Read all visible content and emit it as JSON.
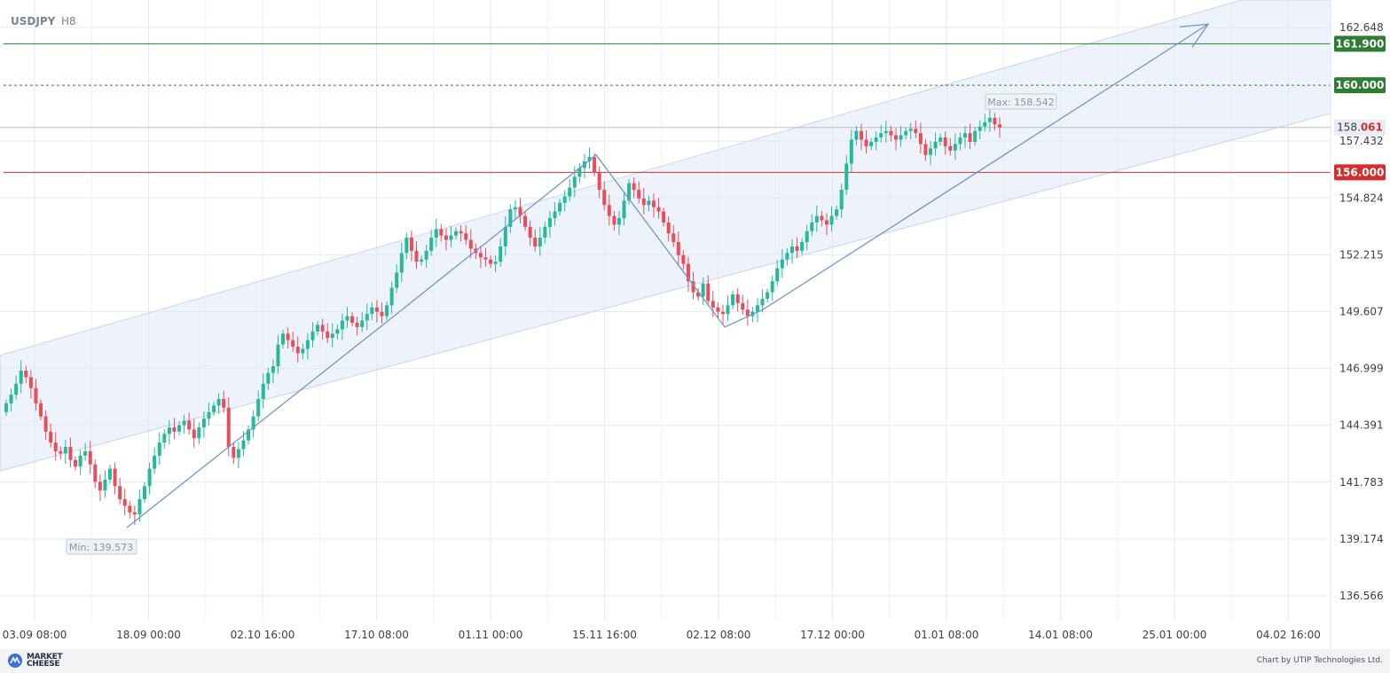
{
  "header": {
    "symbol": "USDJPY",
    "timeframe": "H8"
  },
  "chart_data": {
    "type": "candlestick",
    "symbol": "USDJPY",
    "timeframe": "H8",
    "y_ticks": [
      "162.648",
      "157.432",
      "154.824",
      "152.215",
      "149.607",
      "146.999",
      "144.391",
      "141.783",
      "139.174",
      "136.566"
    ],
    "ylim": [
      135.88,
      163.15
    ],
    "x_ticks": [
      "03.09 08:00",
      "18.09 00:00",
      "02.10 16:00",
      "17.10 08:00",
      "01.11 00:00",
      "15.11 16:00",
      "02.12 08:00",
      "17.12 00:00",
      "01.01 08:00",
      "14.01 08:00",
      "25.01 00:00",
      "04.02 16:00"
    ],
    "current_price": {
      "int": "158.",
      "frac": "061",
      "value": 158.061
    },
    "levels": [
      {
        "label": "161.900",
        "value": 161.9,
        "style": "solid",
        "color": "#2e7d32"
      },
      {
        "label": "160.000",
        "value": 160.0,
        "style": "dashed",
        "color": "#2e7d32"
      },
      {
        "label": "156.000",
        "value": 156.0,
        "style": "solid",
        "color": "#d32f2f"
      }
    ],
    "annotations": {
      "max": "Max: 158.542",
      "min": "Min: 139.573"
    },
    "max_value": 158.542,
    "min_value": 139.573,
    "closes": [
      145.4,
      145.8,
      146.3,
      146.9,
      146.6,
      146.1,
      145.4,
      144.8,
      144.1,
      143.6,
      143.2,
      143.1,
      143.4,
      142.8,
      142.5,
      143.0,
      143.2,
      142.6,
      141.8,
      141.4,
      141.9,
      142.4,
      141.6,
      141.0,
      140.7,
      140.4,
      140.3,
      141.0,
      141.6,
      142.4,
      143.0,
      143.6,
      144.0,
      144.3,
      144.1,
      144.4,
      144.6,
      144.2,
      143.8,
      144.3,
      144.7,
      145.0,
      145.3,
      145.6,
      145.2,
      143.4,
      142.9,
      143.3,
      143.7,
      144.2,
      144.8,
      145.6,
      146.3,
      146.8,
      147.1,
      148.1,
      148.6,
      148.3,
      148.0,
      147.7,
      147.9,
      148.3,
      148.7,
      149.0,
      148.7,
      148.4,
      148.6,
      148.8,
      149.2,
      149.4,
      149.1,
      148.9,
      149.2,
      149.5,
      149.8,
      149.6,
      149.4,
      149.9,
      150.7,
      151.4,
      152.3,
      153.0,
      152.4,
      151.9,
      152.0,
      152.4,
      153.0,
      153.4,
      153.1,
      152.9,
      153.1,
      153.3,
      153.2,
      152.9,
      152.5,
      152.3,
      152.1,
      152.0,
      151.8,
      151.9,
      152.6,
      153.5,
      154.3,
      154.4,
      154.0,
      153.5,
      153.0,
      152.6,
      153.0,
      153.5,
      153.9,
      154.2,
      154.6,
      154.9,
      155.3,
      155.8,
      156.2,
      156.5,
      156.7,
      156.0,
      155.2,
      154.5,
      154.0,
      153.6,
      153.9,
      154.7,
      155.5,
      155.2,
      154.8,
      154.5,
      154.7,
      154.4,
      154.2,
      153.7,
      153.2,
      152.8,
      152.2,
      151.8,
      151.0,
      150.5,
      150.3,
      150.9,
      150.1,
      149.8,
      149.6,
      149.5,
      149.9,
      150.4,
      150.0,
      149.7,
      149.4,
      149.6,
      149.9,
      150.2,
      150.5,
      151.0,
      151.6,
      152.0,
      152.3,
      152.6,
      152.4,
      152.8,
      153.3,
      153.7,
      154.0,
      153.8,
      153.6,
      154.0,
      154.3,
      155.2,
      156.4,
      157.5,
      157.9,
      157.5,
      157.2,
      157.4,
      157.6,
      157.8,
      157.9,
      157.7,
      157.5,
      157.7,
      157.9,
      158.0,
      157.8,
      157.3,
      156.8,
      157.1,
      157.4,
      157.6,
      157.2,
      157.0,
      157.3,
      157.6,
      157.8,
      157.4,
      157.9,
      158.1,
      158.3,
      158.5,
      158.2,
      158.06
    ]
  }
}
